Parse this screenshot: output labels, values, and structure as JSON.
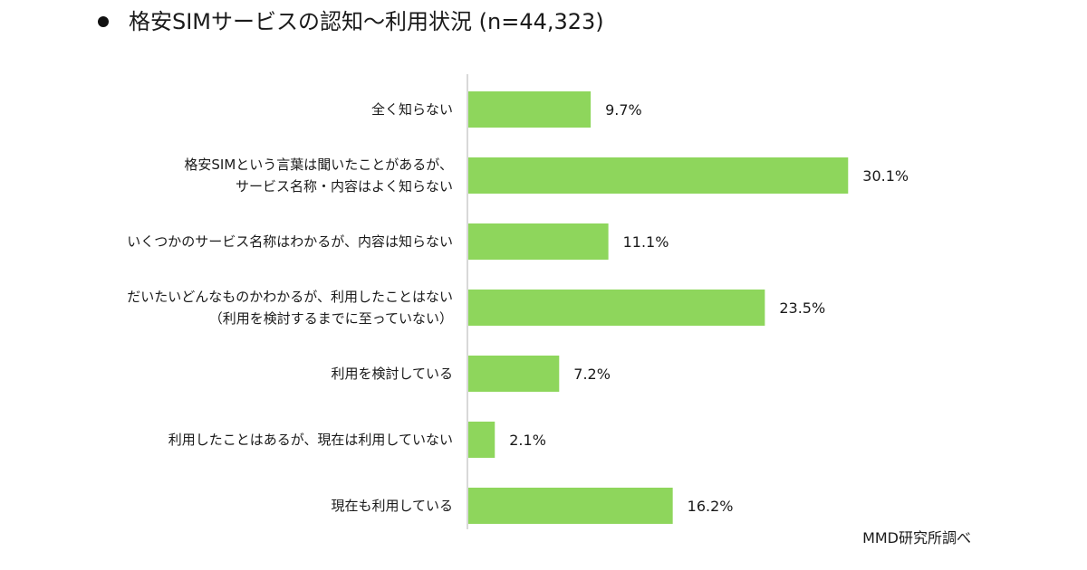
{
  "title": {
    "bullet": "●",
    "text": "格安SIMサービスの認知〜利用状況 (n=44,323)"
  },
  "source": "MMD研究所調べ",
  "colors": {
    "bar": "#8ed65c",
    "axis": "#d9d9d9",
    "text": "#1a1a1a"
  },
  "chart_data": {
    "type": "bar",
    "orientation": "horizontal",
    "title": "格安SIMサービスの認知〜利用状況 (n=44,323)",
    "xlabel": "",
    "ylabel": "",
    "unit": "%",
    "xlim": [
      0,
      40
    ],
    "grid": false,
    "legend": "none",
    "categories": [
      [
        "全く知らない"
      ],
      [
        "格安SIMという言葉は聞いたことがあるが、",
        "サービス名称・内容はよく知らない"
      ],
      [
        "いくつかのサービス名称はわかるが、内容は知らない"
      ],
      [
        "だいたいどんなものかわかるが、利用したことはない",
        "（利用を検討するまでに至っていない）"
      ],
      [
        "利用を検討している"
      ],
      [
        "利用したことはあるが、現在は利用していない"
      ],
      [
        "現在も利用している"
      ]
    ],
    "values": [
      9.7,
      30.1,
      11.1,
      23.5,
      7.2,
      2.1,
      16.2
    ],
    "value_labels": [
      "9.7%",
      "30.1%",
      "11.1%",
      "23.5%",
      "7.2%",
      "2.1%",
      "16.2%"
    ]
  }
}
